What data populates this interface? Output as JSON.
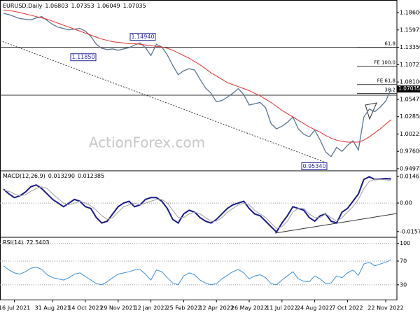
{
  "chart_data": [
    {
      "type": "line",
      "title": "EURUSD,Daily",
      "ohlc": [
        {
          "value": 1.06803,
          "label": "1.06803"
        },
        {
          "value": 1.07353,
          "label": "1.07353"
        },
        {
          "value": 1.06049,
          "label": "1.06049"
        },
        {
          "value": 1.07035,
          "label": "1.07035"
        }
      ],
      "watermark": "ActionForex.com",
      "categories": [
        null,
        null,
        "16 Jul 2021",
        null,
        null,
        null,
        null,
        null,
        null,
        "31 Aug 2021",
        null,
        null,
        null,
        null,
        null,
        "14 Oct 2021",
        null,
        null,
        null,
        null,
        null,
        "29 Nov 2021",
        null,
        null,
        null,
        null,
        null,
        "12 Jan 2022",
        null,
        null,
        null,
        null,
        null,
        "25 Feb 2022",
        null,
        null,
        null,
        null,
        null,
        "12 Apr 2022",
        null,
        null,
        null,
        null,
        null,
        "26 May 2022",
        null,
        null,
        null,
        null,
        null,
        "11 Jul 2022",
        null,
        null,
        null,
        null,
        null,
        "24 Aug 2022",
        null,
        null,
        null,
        null,
        null,
        "7 Oct 2022",
        null,
        null,
        null,
        null,
        null,
        null,
        "22 Nov 2022",
        null
      ],
      "series": [
        {
          "name": "EURUSD",
          "color": "#5b7590",
          "values": [
            1.185,
            1.183,
            1.18,
            1.177,
            1.176,
            1.175,
            1.178,
            1.18,
            1.174,
            1.168,
            1.164,
            1.162,
            1.16,
            1.161,
            1.162,
            1.158,
            1.15,
            1.138,
            1.132,
            1.13,
            1.131,
            1.129,
            1.131,
            1.133,
            1.137,
            1.14,
            1.133,
            1.121,
            1.138,
            1.134,
            1.122,
            1.106,
            1.092,
            1.098,
            1.101,
            1.099,
            1.085,
            1.072,
            1.064,
            1.051,
            1.053,
            1.058,
            1.064,
            1.071,
            1.062,
            1.046,
            1.048,
            1.05,
            1.042,
            1.018,
            1.01,
            1.014,
            1.02,
            1.028,
            1.01,
            1.002,
            0.998,
            1.008,
            0.993,
            0.975,
            0.968,
            0.982,
            0.976,
            0.985,
            0.992,
            0.978,
            1.028,
            1.04,
            1.036,
            1.043,
            1.052,
            1.07035
          ]
        },
        {
          "name": "MA",
          "color": "#e03030",
          "values": [
            1.19,
            1.189,
            1.188,
            1.186,
            1.184,
            1.182,
            1.18,
            1.178,
            1.176,
            1.173,
            1.17,
            1.167,
            1.164,
            1.161,
            1.158,
            1.155,
            1.152,
            1.149,
            1.146,
            1.144,
            1.142,
            1.141,
            1.14,
            1.139,
            1.139,
            1.138,
            1.137,
            1.136,
            1.135,
            1.134,
            1.132,
            1.129,
            1.125,
            1.121,
            1.117,
            1.112,
            1.107,
            1.101,
            1.095,
            1.09,
            1.085,
            1.08,
            1.077,
            1.074,
            1.071,
            1.068,
            1.064,
            1.06,
            1.055,
            1.05,
            1.044,
            1.038,
            1.033,
            1.028,
            1.023,
            1.018,
            1.013,
            1.009,
            1.005,
            1.0,
            0.996,
            0.993,
            0.991,
            0.99,
            0.99,
            0.99,
            0.993,
            0.998,
            1.004,
            1.01,
            1.017,
            1.024
          ]
        }
      ],
      "ylim": [
        0.9476,
        1.203
      ],
      "yticks": [
        {
          "value": 1.186,
          "label": "1.18600"
        },
        {
          "value": 1.15975,
          "label": "1.15975"
        },
        {
          "value": 1.1335,
          "label": "1.13350"
        },
        {
          "value": 1.10725,
          "label": "1.10725"
        },
        {
          "value": 1.081,
          "label": "1.08100"
        },
        {
          "value": 1.05475,
          "label": "1.05475"
        },
        {
          "value": 1.0285,
          "label": "1.02850"
        },
        {
          "value": 1.00225,
          "label": "1.00225"
        },
        {
          "value": 0.976,
          "label": "0.97600"
        },
        {
          "value": 0.94975,
          "label": "0.94975"
        }
      ],
      "levels": [
        1.1335,
        1.061
      ],
      "fib_levels": [
        {
          "label": "61.8",
          "price": 1.1335
        },
        {
          "label": "FE 100.0",
          "price": 1.1048
        },
        {
          "label": "FE 61.8",
          "price": 1.0772
        },
        {
          "label": "38.2",
          "price": 1.0635
        }
      ],
      "price_marks": [
        {
          "value": 1.1494,
          "label": "1.14940"
        },
        {
          "value": 1.1185,
          "label": "1.11850"
        },
        {
          "value": 0.9534,
          "label": "0.95340"
        }
      ]
    },
    {
      "type": "line",
      "title": "MACD(12,26,9)",
      "header_values": [
        {
          "value": 0.01329,
          "label": "0.013290"
        },
        {
          "value": 0.012385,
          "label": "0.012385"
        }
      ],
      "series": [
        {
          "name": "MACD",
          "color": "#1a1a8c",
          "values": [
            0.0077,
            0.005,
            0.003,
            0.004,
            0.006,
            0.009,
            0.01,
            0.008,
            0.005,
            0.002,
            0.0,
            -0.002,
            0.0,
            0.002,
            0.001,
            -0.002,
            -0.003,
            -0.008,
            -0.011,
            -0.01,
            -0.006,
            -0.002,
            0.0,
            0.001,
            -0.002,
            -0.001,
            0.002,
            0.003,
            0.003,
            0.001,
            -0.003,
            -0.009,
            -0.011,
            -0.006,
            -0.004,
            -0.005,
            -0.008,
            -0.01,
            -0.011,
            -0.009,
            -0.006,
            -0.003,
            -0.001,
            0.0,
            0.001,
            -0.003,
            -0.006,
            -0.007,
            -0.01,
            -0.013,
            -0.016,
            -0.011,
            -0.007,
            -0.002,
            -0.003,
            -0.004,
            -0.008,
            -0.01,
            -0.007,
            -0.006,
            -0.01,
            -0.011,
            -0.005,
            -0.003,
            0.001,
            0.005,
            0.013,
            0.0145,
            0.013,
            0.0132,
            0.0135,
            0.01329
          ]
        },
        {
          "name": "Signal",
          "color": "#a0a0a0",
          "values": [
            0.007,
            0.0065,
            0.005,
            0.004,
            0.0045,
            0.0065,
            0.008,
            0.009,
            0.008,
            0.005,
            0.0025,
            0.0,
            -0.001,
            0.0,
            0.001,
            0.0,
            -0.0015,
            -0.004,
            -0.007,
            -0.009,
            -0.008,
            -0.005,
            -0.002,
            -0.001,
            0.0,
            -0.001,
            0.0,
            0.001,
            0.002,
            0.002,
            0.0,
            -0.004,
            -0.008,
            -0.008,
            -0.006,
            -0.005,
            -0.006,
            -0.008,
            -0.01,
            -0.01,
            -0.008,
            -0.005,
            -0.003,
            -0.001,
            0.0,
            -0.001,
            -0.004,
            -0.006,
            -0.008,
            -0.011,
            -0.014,
            -0.013,
            -0.01,
            -0.005,
            -0.003,
            -0.003,
            -0.006,
            -0.008,
            -0.008,
            -0.006,
            -0.008,
            -0.01,
            -0.008,
            -0.005,
            -0.002,
            0.002,
            0.008,
            0.012,
            0.013,
            0.013,
            0.0128,
            0.012385
          ]
        }
      ],
      "ylim": [
        -0.0185,
        0.0174
      ],
      "yticks": [
        0.014672,
        {
          "value": 0,
          "label": "0.00"
        },
        -0.015718
      ]
    },
    {
      "type": "line",
      "title": "RSI(14)",
      "series": [
        {
          "name": "RSI",
          "color": "#3d8fd6",
          "values": [
            62,
            55,
            50,
            48,
            52,
            58,
            60,
            56,
            47,
            42,
            40,
            38,
            42,
            48,
            50,
            44,
            38,
            32,
            30,
            35,
            42,
            48,
            50,
            52,
            55,
            56,
            48,
            38,
            55,
            52,
            42,
            33,
            30,
            45,
            50,
            47,
            38,
            33,
            30,
            32,
            40,
            46,
            52,
            56,
            50,
            40,
            45,
            47,
            42,
            32,
            30,
            38,
            45,
            52,
            40,
            36,
            35,
            45,
            40,
            32,
            33,
            45,
            42,
            50,
            55,
            46,
            65,
            68,
            62,
            65,
            68,
            72.5403
          ]
        }
      ],
      "ylim": [
        5,
        109
      ],
      "yticks": [
        100,
        70,
        30
      ]
    }
  ]
}
